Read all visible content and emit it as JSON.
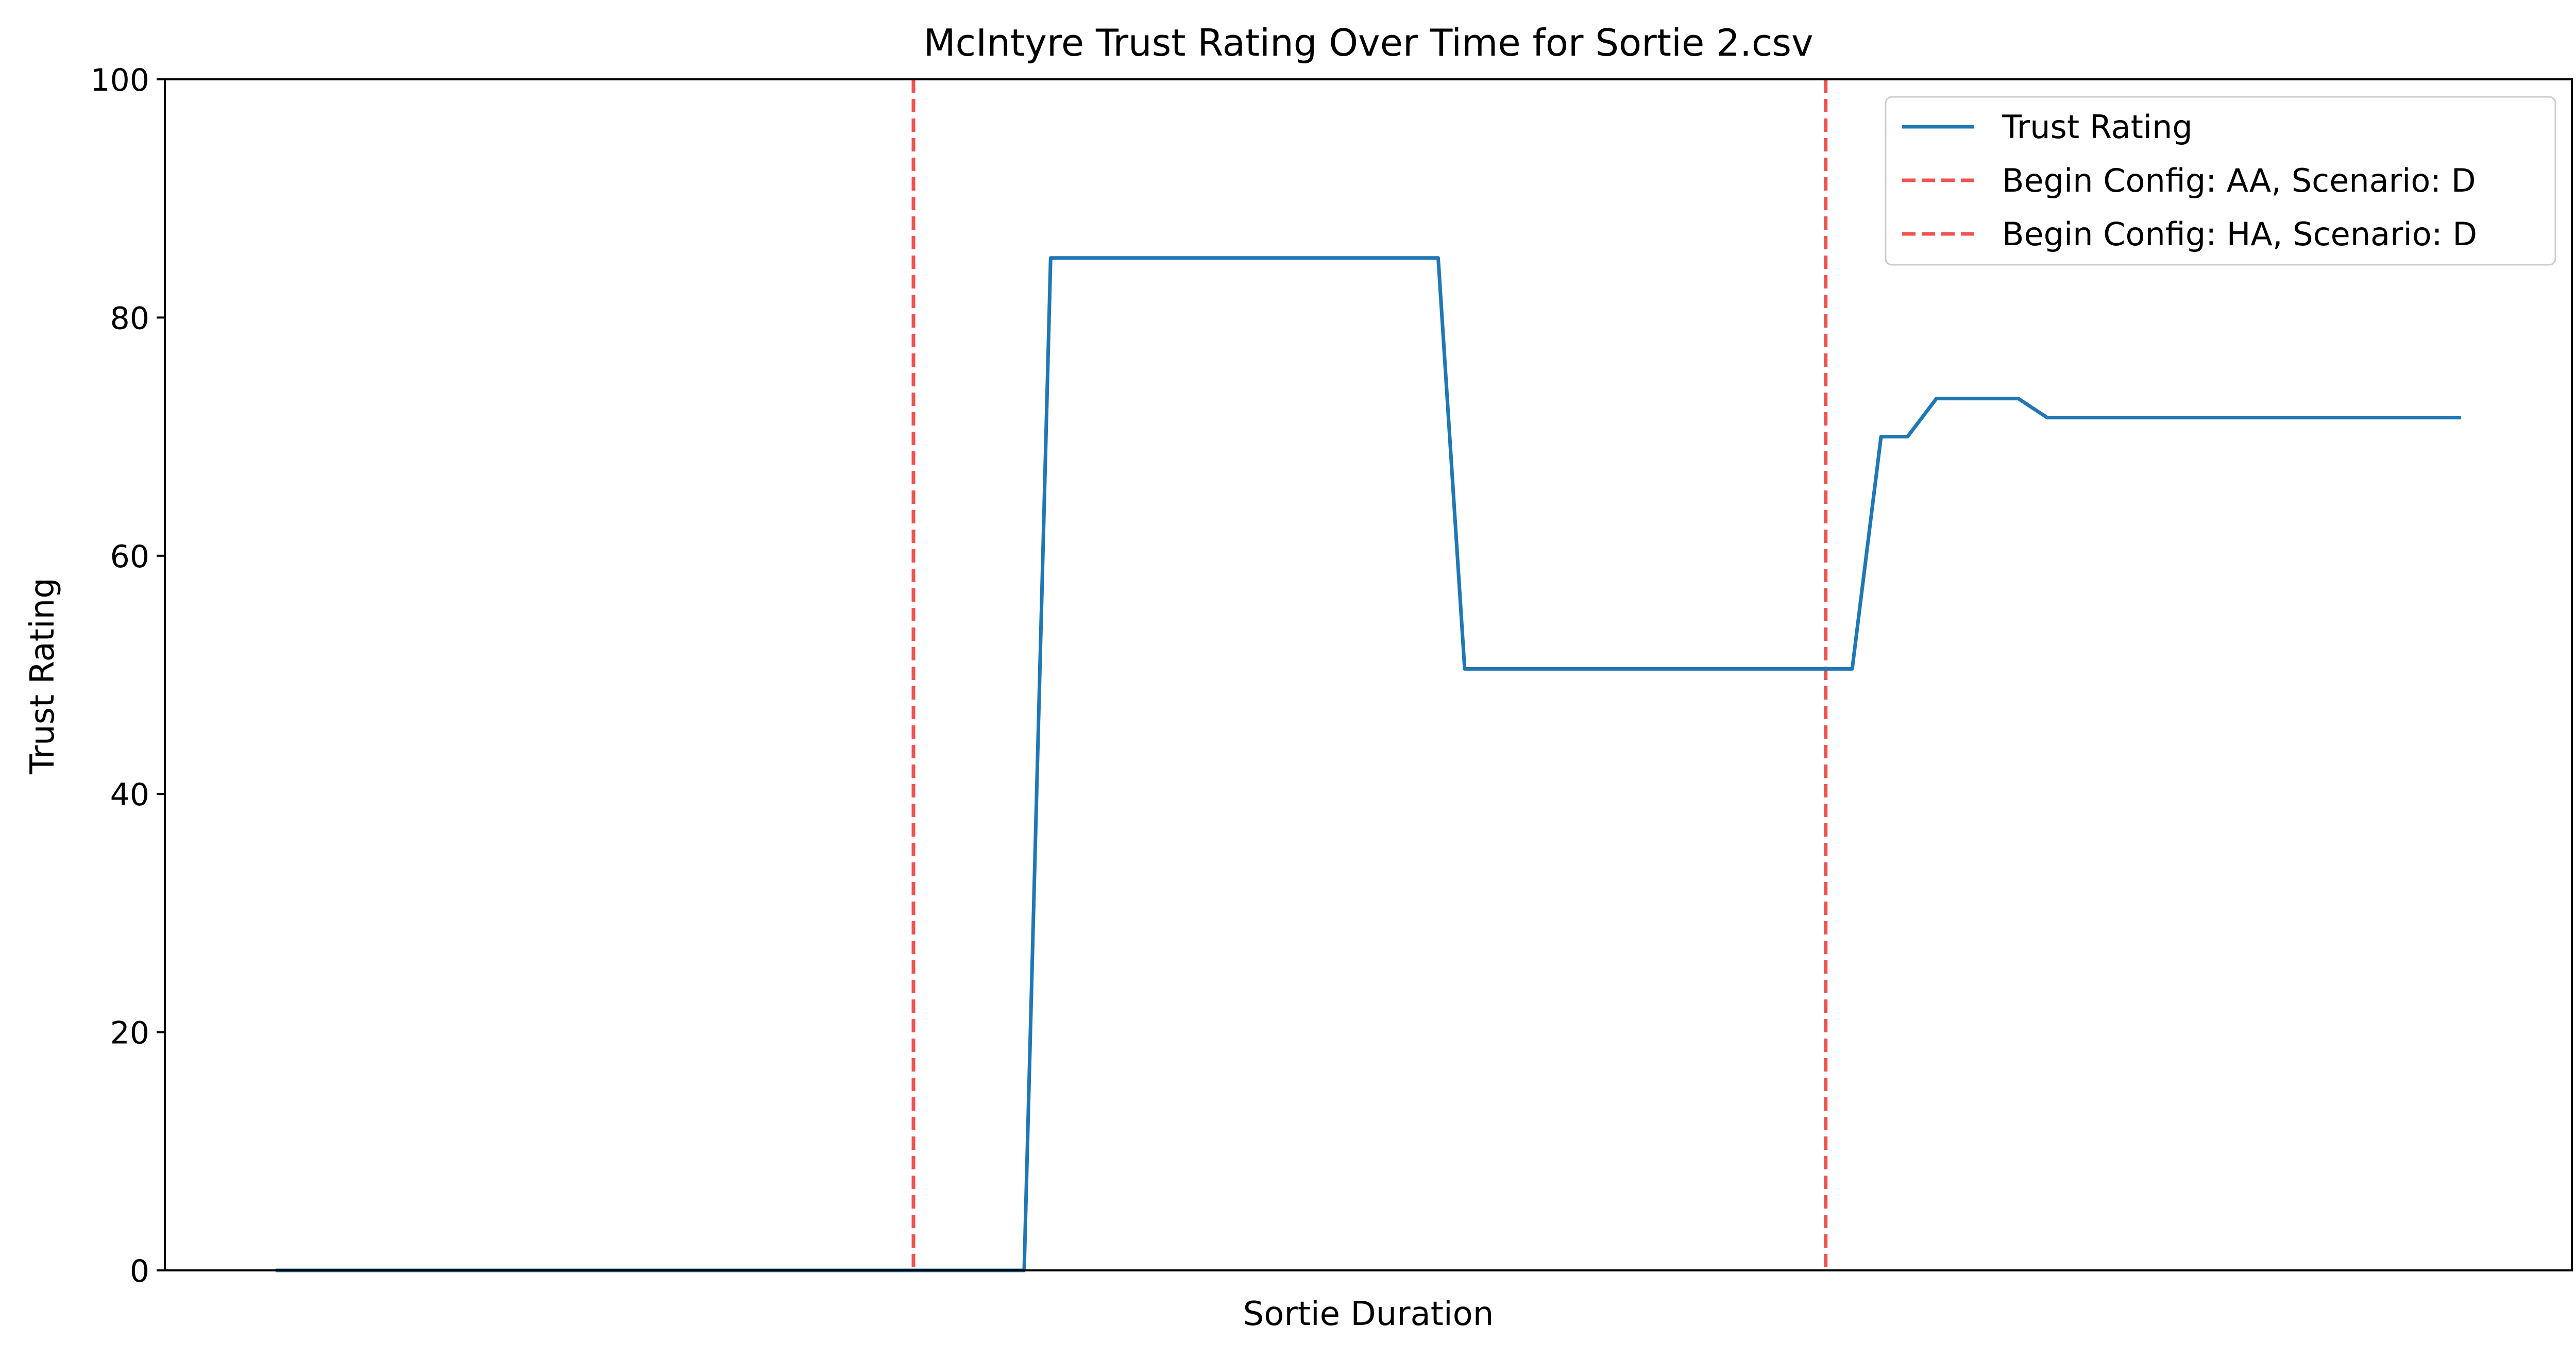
{
  "chart_data": {
    "type": "line",
    "title": "McIntyre Trust Rating Over Time for Sortie 2.csv",
    "xlabel": "Sortie Duration",
    "ylabel": "Trust Rating",
    "ylim": [
      0,
      100
    ],
    "yticks": [
      0,
      20,
      40,
      60,
      80,
      100
    ],
    "xlim": [
      0,
      100
    ],
    "xticks_visible": false,
    "grid": false,
    "legend_position": "top-right",
    "series": [
      {
        "name": "Trust Rating",
        "color": "#1f77b4",
        "style": "solid",
        "x": [
          4.6,
          35.7,
          36.8,
          52.9,
          54.0,
          70.1,
          71.3,
          72.4,
          73.6,
          77.0,
          78.2,
          95.4
        ],
        "y": [
          0,
          0,
          85,
          85,
          50.5,
          50.5,
          70,
          70,
          73.2,
          73.2,
          71.6,
          71.6
        ]
      }
    ],
    "vlines": [
      {
        "name": "Begin Config: AA, Scenario: D",
        "x": 31.1,
        "color": "#ef5350",
        "style": "dashed"
      },
      {
        "name": "Begin Config: HA, Scenario: D",
        "x": 69.0,
        "color": "#ef5350",
        "style": "dashed"
      }
    ]
  }
}
